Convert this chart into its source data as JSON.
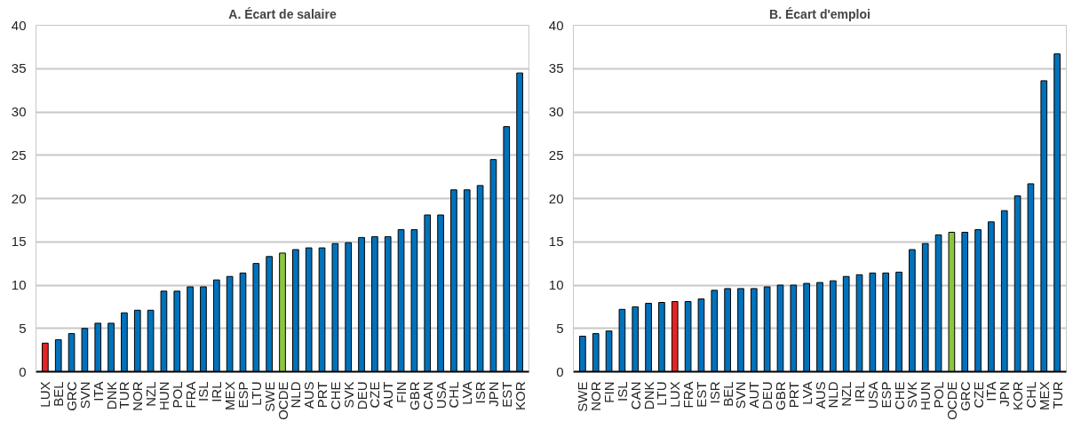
{
  "chart_data": [
    {
      "type": "bar",
      "title": "A. Écart de salaire",
      "categories": [
        "LUX",
        "BEL",
        "GRC",
        "SVN",
        "ITA",
        "DNK",
        "TUR",
        "NOR",
        "NZL",
        "HUN",
        "POL",
        "FRA",
        "ISL",
        "IRL",
        "MEX",
        "ESP",
        "LTU",
        "SWE",
        "OCDE",
        "NLD",
        "AUS",
        "PRT",
        "CHE",
        "SVK",
        "DEU",
        "CZE",
        "AUT",
        "FIN",
        "GBR",
        "CAN",
        "USA",
        "CHL",
        "LVA",
        "ISR",
        "JPN",
        "EST",
        "KOR"
      ],
      "values": [
        3.3,
        3.7,
        4.4,
        5.0,
        5.6,
        5.6,
        6.8,
        7.1,
        7.1,
        9.3,
        9.3,
        9.8,
        9.8,
        10.6,
        11.0,
        11.4,
        12.5,
        13.3,
        13.7,
        14.1,
        14.3,
        14.3,
        14.8,
        14.9,
        15.5,
        15.6,
        15.6,
        16.4,
        16.4,
        18.1,
        18.1,
        21.0,
        21.0,
        21.5,
        24.5,
        28.3,
        34.5
      ],
      "colors": [
        "#e32526",
        "#0072bc",
        "#0072bc",
        "#0072bc",
        "#0072bc",
        "#0072bc",
        "#0072bc",
        "#0072bc",
        "#0072bc",
        "#0072bc",
        "#0072bc",
        "#0072bc",
        "#0072bc",
        "#0072bc",
        "#0072bc",
        "#0072bc",
        "#0072bc",
        "#0072bc",
        "#8cc63f",
        "#0072bc",
        "#0072bc",
        "#0072bc",
        "#0072bc",
        "#0072bc",
        "#0072bc",
        "#0072bc",
        "#0072bc",
        "#0072bc",
        "#0072bc",
        "#0072bc",
        "#0072bc",
        "#0072bc",
        "#0072bc",
        "#0072bc",
        "#0072bc",
        "#0072bc",
        "#0072bc"
      ],
      "ylim": [
        0,
        40
      ],
      "yticks": [
        0,
        5,
        10,
        15,
        20,
        25,
        30,
        35,
        40
      ],
      "grid": "y"
    },
    {
      "type": "bar",
      "title": "B. Écart d'emploi",
      "categories": [
        "SWE",
        "NOR",
        "FIN",
        "ISL",
        "CAN",
        "DNK",
        "LTU",
        "LUX",
        "FRA",
        "EST",
        "ISR",
        "BEL",
        "SVN",
        "AUT",
        "DEU",
        "GBR",
        "PRT",
        "LVA",
        "AUS",
        "NLD",
        "NZL",
        "IRL",
        "USA",
        "ESP",
        "CHE",
        "SVK",
        "HUN",
        "POL",
        "OCDE",
        "GRC",
        "CZE",
        "ITA",
        "JPN",
        "KOR",
        "CHL",
        "MEX",
        "TUR"
      ],
      "values": [
        4.1,
        4.4,
        4.7,
        7.2,
        7.5,
        7.9,
        8.0,
        8.1,
        8.1,
        8.4,
        9.4,
        9.6,
        9.6,
        9.6,
        9.8,
        10.0,
        10.0,
        10.2,
        10.3,
        10.5,
        11.0,
        11.2,
        11.4,
        11.4,
        11.5,
        14.1,
        14.8,
        15.8,
        16.1,
        16.1,
        16.4,
        17.3,
        18.6,
        20.3,
        21.7,
        33.6,
        36.7
      ],
      "colors": [
        "#0072bc",
        "#0072bc",
        "#0072bc",
        "#0072bc",
        "#0072bc",
        "#0072bc",
        "#0072bc",
        "#e32526",
        "#0072bc",
        "#0072bc",
        "#0072bc",
        "#0072bc",
        "#0072bc",
        "#0072bc",
        "#0072bc",
        "#0072bc",
        "#0072bc",
        "#0072bc",
        "#0072bc",
        "#0072bc",
        "#0072bc",
        "#0072bc",
        "#0072bc",
        "#0072bc",
        "#0072bc",
        "#0072bc",
        "#0072bc",
        "#0072bc",
        "#8cc63f",
        "#0072bc",
        "#0072bc",
        "#0072bc",
        "#0072bc",
        "#0072bc",
        "#0072bc",
        "#0072bc",
        "#0072bc"
      ],
      "ylim": [
        0,
        40
      ],
      "yticks": [
        0,
        5,
        10,
        15,
        20,
        25,
        30,
        35,
        40
      ],
      "grid": "y"
    }
  ]
}
